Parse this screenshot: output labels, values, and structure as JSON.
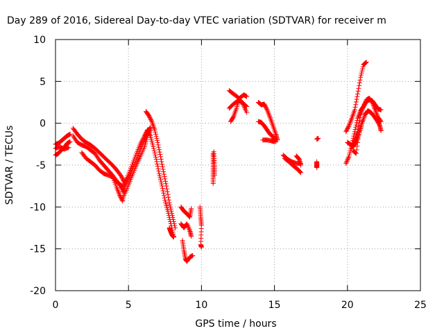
{
  "chart_data": {
    "type": "scatter",
    "title": "Day 289 of 2016, Sidereal Day-to-day VTEC variation (SDTVAR) for receiver m",
    "xlabel": "GPS time / hours",
    "ylabel": "SDTVAR / TECUs",
    "xlim": [
      0,
      25
    ],
    "ylim": [
      -20,
      10
    ],
    "xticks": [
      "0",
      "5",
      "10",
      "15",
      "20",
      "25"
    ],
    "yticks": [
      "-20",
      "-15",
      "-10",
      "-5",
      "0",
      "5",
      "10"
    ],
    "grid": true,
    "marker": "plus",
    "series": [
      {
        "color": "#ff0000",
        "segments": [
          [
            [
              0,
              -2.5
            ],
            [
              0.2,
              -2.4
            ],
            [
              0.4,
              -2.1
            ],
            [
              0.6,
              -1.8
            ],
            [
              0.8,
              -1.5
            ],
            [
              1.0,
              -1.3
            ]
          ],
          [
            [
              0,
              -3.8
            ],
            [
              0.2,
              -3.6
            ],
            [
              0.4,
              -3.2
            ],
            [
              0.6,
              -2.9
            ],
            [
              0.8,
              -2.4
            ],
            [
              1.0,
              -2.2
            ]
          ],
          [
            [
              0,
              -3.0
            ],
            [
              0.3,
              -2.8
            ],
            [
              0.6,
              -3.1
            ],
            [
              0.9,
              -2.9
            ]
          ],
          [
            [
              1.2,
              -0.6
            ],
            [
              1.5,
              -1.3
            ],
            [
              1.8,
              -1.9
            ],
            [
              2.1,
              -2.3
            ],
            [
              2.4,
              -2.6
            ],
            [
              2.7,
              -3.0
            ],
            [
              3.0,
              -3.5
            ],
            [
              3.3,
              -4.0
            ],
            [
              3.6,
              -4.5
            ],
            [
              3.9,
              -5.0
            ],
            [
              4.2,
              -5.6
            ],
            [
              4.5,
              -6.3
            ],
            [
              4.7,
              -7.0
            ]
          ],
          [
            [
              1.2,
              -1.5
            ],
            [
              1.5,
              -2.3
            ],
            [
              1.8,
              -2.6
            ],
            [
              2.1,
              -2.8
            ],
            [
              2.4,
              -3.2
            ],
            [
              2.7,
              -3.6
            ],
            [
              3.0,
              -4.4
            ],
            [
              3.3,
              -5.0
            ],
            [
              3.6,
              -5.6
            ],
            [
              3.9,
              -6.2
            ],
            [
              4.2,
              -6.9
            ],
            [
              4.5,
              -7.6
            ],
            [
              4.7,
              -8.2
            ]
          ],
          [
            [
              1.8,
              -3.5
            ],
            [
              2.1,
              -4.2
            ],
            [
              2.4,
              -4.6
            ],
            [
              2.7,
              -5.0
            ],
            [
              3.0,
              -5.6
            ],
            [
              3.3,
              -6.0
            ],
            [
              3.6,
              -6.2
            ],
            [
              3.9,
              -6.4
            ],
            [
              4.2,
              -7.0
            ],
            [
              4.5,
              -7.4
            ]
          ],
          [
            [
              3.9,
              -6.4
            ],
            [
              4.2,
              -7.7
            ],
            [
              4.4,
              -8.6
            ],
            [
              4.6,
              -9.3
            ]
          ],
          [
            [
              4.6,
              -8.2
            ],
            [
              4.9,
              -7.0
            ],
            [
              5.2,
              -5.8
            ],
            [
              5.5,
              -4.5
            ],
            [
              5.8,
              -3.2
            ],
            [
              6.1,
              -2.0
            ],
            [
              6.3,
              -1.0
            ],
            [
              6.5,
              -0.5
            ]
          ],
          [
            [
              4.6,
              -9.0
            ],
            [
              4.9,
              -7.8
            ],
            [
              5.2,
              -6.5
            ],
            [
              5.5,
              -5.2
            ],
            [
              5.8,
              -4.0
            ],
            [
              6.1,
              -2.8
            ],
            [
              6.3,
              -1.5
            ],
            [
              6.5,
              -0.8
            ]
          ],
          [
            [
              4.6,
              -7.5
            ],
            [
              4.9,
              -6.5
            ],
            [
              5.2,
              -5.2
            ],
            [
              5.5,
              -3.8
            ],
            [
              5.8,
              -2.5
            ],
            [
              6.1,
              -1.5
            ],
            [
              6.3,
              -0.8
            ]
          ],
          [
            [
              6.2,
              1.4
            ],
            [
              6.4,
              0.9
            ],
            [
              6.6,
              0.2
            ],
            [
              6.8,
              -0.8
            ],
            [
              7.0,
              -2.3
            ],
            [
              7.2,
              -4.0
            ],
            [
              7.4,
              -5.8
            ],
            [
              7.6,
              -7.5
            ],
            [
              7.8,
              -9.5
            ],
            [
              8.0,
              -11.0
            ],
            [
              8.2,
              -12.5
            ]
          ],
          [
            [
              6.3,
              -0.8
            ],
            [
              6.5,
              -1.5
            ],
            [
              6.7,
              -2.8
            ],
            [
              6.9,
              -4.3
            ],
            [
              7.1,
              -6.0
            ],
            [
              7.3,
              -7.5
            ],
            [
              7.5,
              -9.2
            ],
            [
              7.7,
              -10.5
            ],
            [
              7.9,
              -12.0
            ],
            [
              8.1,
              -13.5
            ]
          ],
          [
            [
              7.8,
              -12.5
            ],
            [
              7.9,
              -13.0
            ],
            [
              8.0,
              -13.4
            ],
            [
              8.1,
              -13.6
            ]
          ],
          [
            [
              8.6,
              -10.0
            ],
            [
              8.8,
              -10.5
            ],
            [
              9.0,
              -10.8
            ],
            [
              9.2,
              -11.2
            ],
            [
              9.3,
              -10.2
            ]
          ],
          [
            [
              8.6,
              -12.0
            ],
            [
              8.8,
              -12.5
            ],
            [
              9.0,
              -12.0
            ],
            [
              9.2,
              -12.8
            ],
            [
              9.3,
              -13.5
            ]
          ],
          [
            [
              8.7,
              -14.0
            ],
            [
              8.8,
              -15.2
            ],
            [
              8.9,
              -16.2
            ],
            [
              9.0,
              -16.5
            ],
            [
              9.2,
              -16.0
            ],
            [
              9.4,
              -15.8
            ]
          ],
          [
            [
              9.9,
              -10.0
            ],
            [
              9.95,
              -11.2
            ],
            [
              10.0,
              -12.2
            ],
            [
              9.95,
              -14.5
            ],
            [
              10.0,
              -14.8
            ]
          ],
          [
            [
              10.8,
              -3.6
            ],
            [
              10.8,
              -4.8
            ],
            [
              10.8,
              -6.0
            ],
            [
              10.8,
              -7.2
            ]
          ],
          [
            [
              10.85,
              -3.4
            ],
            [
              10.9,
              -5.0
            ],
            [
              10.9,
              -6.2
            ]
          ],
          [
            [
              11.9,
              3.9
            ],
            [
              12.2,
              3.5
            ],
            [
              12.5,
              3.1
            ],
            [
              12.8,
              2.4
            ],
            [
              13.1,
              1.3
            ]
          ],
          [
            [
              11.9,
              1.8
            ],
            [
              12.2,
              2.3
            ],
            [
              12.5,
              2.7
            ],
            [
              12.8,
              2.5
            ],
            [
              13.1,
              2.0
            ]
          ],
          [
            [
              12.0,
              0.2
            ],
            [
              12.2,
              0.8
            ],
            [
              12.4,
              1.8
            ],
            [
              12.6,
              3.0
            ],
            [
              12.9,
              3.4
            ],
            [
              13.1,
              3.2
            ]
          ],
          [
            [
              13.9,
              2.5
            ],
            [
              14.1,
              2.2
            ],
            [
              14.3,
              2.3
            ],
            [
              14.5,
              1.6
            ],
            [
              14.7,
              0.7
            ],
            [
              14.9,
              -0.3
            ],
            [
              15.1,
              -1.3
            ],
            [
              15.2,
              -2.0
            ]
          ],
          [
            [
              13.9,
              0.2
            ],
            [
              14.1,
              0.1
            ],
            [
              14.3,
              -0.3
            ],
            [
              14.5,
              -0.8
            ],
            [
              14.7,
              -1.3
            ],
            [
              14.9,
              -1.6
            ],
            [
              15.1,
              -2.2
            ]
          ],
          [
            [
              14.2,
              -2.0
            ],
            [
              14.5,
              -2.0
            ],
            [
              14.8,
              -2.1
            ],
            [
              15.0,
              -2.2
            ]
          ],
          [
            [
              15.6,
              -3.8
            ],
            [
              15.9,
              -4.3
            ],
            [
              16.2,
              -4.6
            ],
            [
              16.5,
              -4.8
            ],
            [
              16.8,
              -4.8
            ]
          ],
          [
            [
              15.7,
              -4.2
            ],
            [
              16.0,
              -4.6
            ],
            [
              16.3,
              -5.1
            ],
            [
              16.6,
              -5.5
            ],
            [
              16.8,
              -5.9
            ]
          ],
          [
            [
              16.5,
              -3.9
            ],
            [
              16.7,
              -4.3
            ],
            [
              16.8,
              -5.0
            ]
          ],
          [
            [
              17.9,
              -1.9
            ],
            [
              18.0,
              -1.8
            ]
          ],
          [
            [
              17.9,
              -4.6
            ],
            [
              17.9,
              -5.0
            ],
            [
              17.9,
              -5.3
            ]
          ],
          [
            [
              19.9,
              -1.0
            ],
            [
              20.1,
              -0.3
            ],
            [
              20.3,
              0.6
            ],
            [
              20.5,
              1.6
            ],
            [
              20.7,
              3.5
            ],
            [
              20.9,
              5.5
            ],
            [
              21.1,
              7.0
            ],
            [
              21.3,
              7.3
            ]
          ],
          [
            [
              19.9,
              -4.8
            ],
            [
              20.1,
              -4.0
            ],
            [
              20.3,
              -2.6
            ],
            [
              20.5,
              -1.0
            ],
            [
              20.7,
              0.6
            ],
            [
              20.9,
              1.5
            ],
            [
              21.1,
              2.0
            ],
            [
              21.3,
              2.6
            ],
            [
              21.5,
              2.8
            ],
            [
              21.7,
              2.7
            ],
            [
              21.9,
              2.2
            ],
            [
              22.1,
              1.7
            ],
            [
              22.3,
              1.6
            ]
          ],
          [
            [
              20.0,
              -2.3
            ],
            [
              20.2,
              -2.5
            ],
            [
              20.4,
              -2.8
            ],
            [
              20.6,
              -2.2
            ],
            [
              20.8,
              -1.3
            ],
            [
              21.0,
              0.0
            ],
            [
              21.2,
              1.0
            ],
            [
              21.4,
              1.5
            ],
            [
              21.6,
              1.3
            ],
            [
              21.8,
              0.9
            ],
            [
              22.0,
              0.4
            ],
            [
              22.2,
              -0.2
            ],
            [
              22.3,
              -0.9
            ]
          ],
          [
            [
              20.3,
              -3.0
            ],
            [
              20.5,
              -2.0
            ],
            [
              20.7,
              -1.0
            ],
            [
              20.9,
              1.0
            ],
            [
              21.1,
              2.0
            ],
            [
              21.3,
              2.8
            ],
            [
              21.5,
              3.0
            ],
            [
              21.7,
              2.5
            ],
            [
              21.9,
              1.6
            ],
            [
              22.1,
              0.7
            ],
            [
              22.3,
              0.2
            ]
          ],
          [
            [
              20.4,
              -3.3
            ],
            [
              20.6,
              -3.6
            ],
            [
              20.8,
              -1.0
            ],
            [
              21.0,
              0.2
            ]
          ]
        ]
      }
    ]
  }
}
